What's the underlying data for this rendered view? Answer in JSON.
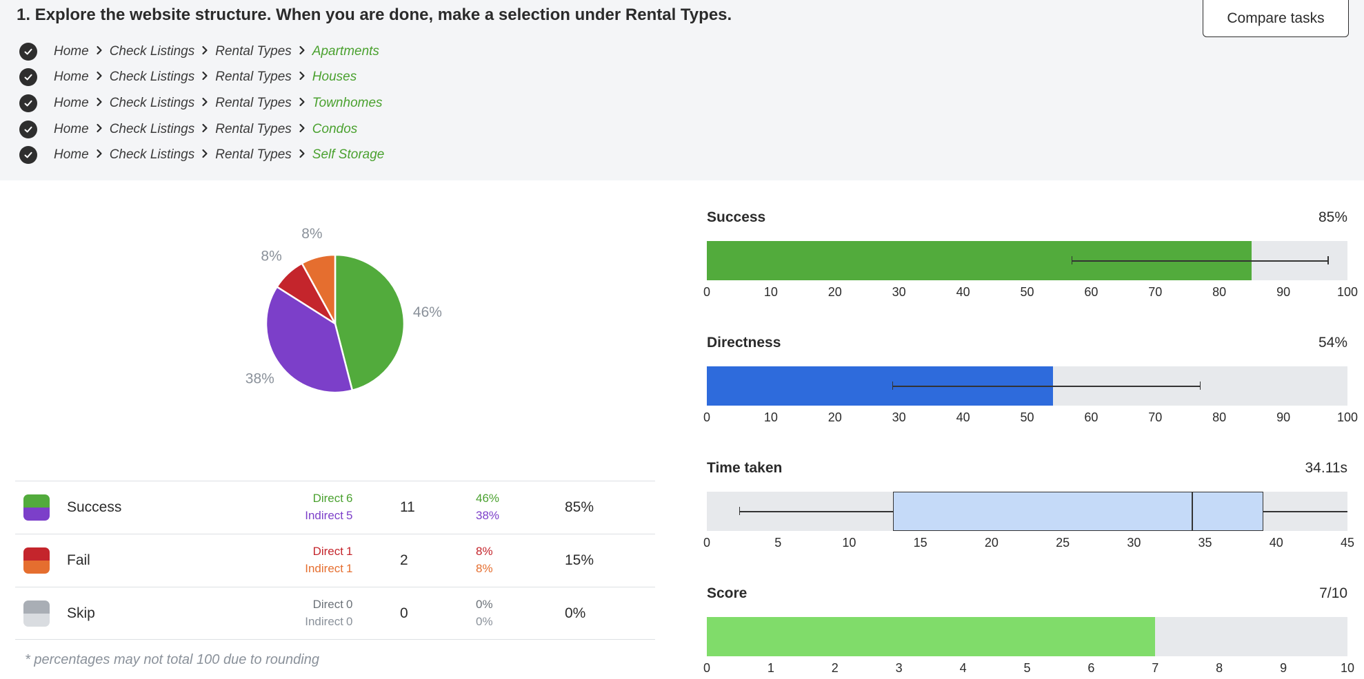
{
  "task": {
    "title": "1. Explore the website structure. When you are done, make a selection under Rental Types.",
    "compare_label": "Compare tasks"
  },
  "paths": [
    {
      "segments": [
        "Home",
        "Check Listings",
        "Rental Types"
      ],
      "final": "Apartments"
    },
    {
      "segments": [
        "Home",
        "Check Listings",
        "Rental Types"
      ],
      "final": "Houses"
    },
    {
      "segments": [
        "Home",
        "Check Listings",
        "Rental Types"
      ],
      "final": "Townhomes"
    },
    {
      "segments": [
        "Home",
        "Check Listings",
        "Rental Types"
      ],
      "final": "Condos"
    },
    {
      "segments": [
        "Home",
        "Check Listings",
        "Rental Types"
      ],
      "final": "Self Storage"
    }
  ],
  "pie": {
    "slices": [
      {
        "name": "Success Direct",
        "percent": 46,
        "label": "46%",
        "color": "#52ab3c"
      },
      {
        "name": "Success Indirect",
        "percent": 38,
        "label": "38%",
        "color": "#7c3fc9"
      },
      {
        "name": "Fail Direct",
        "percent": 8,
        "label": "8%",
        "color": "#c4252c"
      },
      {
        "name": "Fail Indirect",
        "percent": 8,
        "label": "8%",
        "color": "#e56e2f"
      }
    ]
  },
  "results": [
    {
      "name": "Success",
      "colors": [
        "#52ab3c",
        "#7c3fc9"
      ],
      "direct_label": "Direct",
      "indirect_label": "Indirect",
      "direct_count": "6",
      "indirect_count": "5",
      "total": "11",
      "direct_pct": "46%",
      "indirect_pct": "38%",
      "overall": "85%",
      "direct_color": "#4aa12f",
      "indirect_color": "#7c3fc9"
    },
    {
      "name": "Fail",
      "colors": [
        "#c4252c",
        "#e56e2f"
      ],
      "direct_label": "Direct",
      "indirect_label": "Indirect",
      "direct_count": "1",
      "indirect_count": "1",
      "total": "2",
      "direct_pct": "8%",
      "indirect_pct": "8%",
      "overall": "15%",
      "direct_color": "#c4252c",
      "indirect_color": "#e56e2f"
    },
    {
      "name": "Skip",
      "colors": [
        "#a9aeb5",
        "#d9dce0"
      ],
      "direct_label": "Direct",
      "indirect_label": "Indirect",
      "direct_count": "0",
      "indirect_count": "0",
      "total": "0",
      "direct_pct": "0%",
      "indirect_pct": "0%",
      "overall": "0%",
      "direct_color": "#6b7178",
      "indirect_color": "#8a919a"
    }
  ],
  "footnote": "* percentages may not total 100 due to rounding",
  "metrics": {
    "success": {
      "title": "Success",
      "value_label": "85%",
      "value": 85,
      "range": [
        57,
        97
      ],
      "axis_max": 100,
      "color": "#52ab3c",
      "ticks": [
        "0",
        "10",
        "20",
        "30",
        "40",
        "50",
        "60",
        "70",
        "80",
        "90",
        "100"
      ]
    },
    "directness": {
      "title": "Directness",
      "value_label": "54%",
      "value": 54,
      "range": [
        29,
        77
      ],
      "axis_max": 100,
      "color": "#2e6bdc",
      "ticks": [
        "0",
        "10",
        "20",
        "30",
        "40",
        "50",
        "60",
        "70",
        "80",
        "90",
        "100"
      ]
    },
    "time": {
      "title": "Time taken",
      "value_label": "34.11s",
      "min": 2.3,
      "q1": 13.1,
      "median": 34.11,
      "q3": 39.1,
      "max": 45,
      "axis_max": 45,
      "ticks": [
        "0",
        "5",
        "10",
        "15",
        "20",
        "25",
        "30",
        "35",
        "40",
        "45"
      ]
    },
    "score": {
      "title": "Score",
      "value_label": "7/10",
      "value": 7,
      "axis_max": 10,
      "color": "#80dc6a",
      "ticks": [
        "0",
        "1",
        "2",
        "3",
        "4",
        "5",
        "6",
        "7",
        "8",
        "9",
        "10"
      ]
    }
  }
}
